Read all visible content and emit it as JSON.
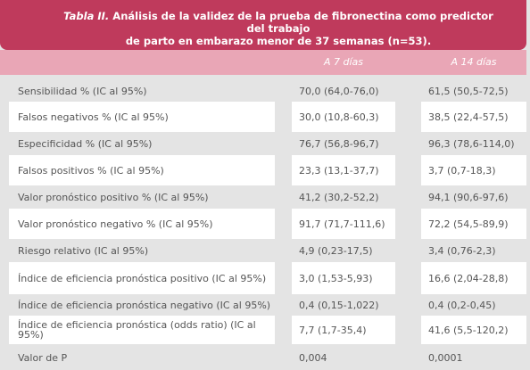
{
  "title": {
    "label": "Tabla II.",
    "line1": "Análisis de la validez de la prueba de fibronectina como predictor del trabajo",
    "line2": "de parto en embarazo menor de 37 semanas (n=53)."
  },
  "columns": [
    "A 7 días",
    "A 14 días"
  ],
  "rows": [
    {
      "label": "Sensibilidad % (IC al 95%)",
      "v7": "70,0 (64,0-76,0)",
      "v14": "61,5 (50,5-72,5)"
    },
    {
      "label": "Falsos negativos % (IC al 95%)",
      "v7": "30,0 (10,8-60,3)",
      "v14": "38,5 (22,4-57,5)"
    },
    {
      "label": "Especificidad % (IC al 95%)",
      "v7": "76,7 (56,8-96,7)",
      "v14": "96,3 (78,6-114,0)"
    },
    {
      "label": "Falsos positivos % (IC al 95%)",
      "v7": "23,3 (13,1-37,7)",
      "v14": "3,7 (0,7-18,3)"
    },
    {
      "label": "Valor pronóstico positivo % (IC al 95%)",
      "v7": "41,2 (30,2-52,2)",
      "v14": "94,1 (90,6-97,6)"
    },
    {
      "label": "Valor pronóstico negativo % (IC al 95%)",
      "v7": "91,7 (71,7-111,6)",
      "v14": "72,2 (54,5-89,9)"
    },
    {
      "label": "Riesgo relativo (IC al 95%)",
      "v7": "4,9 (0,23-17,5)",
      "v14": "3,4 (0,76-2,3)"
    },
    {
      "label": "Índice de eficiencia pronóstica positivo (IC al 95%)",
      "v7": "3,0 (1,53-5,93)",
      "v14": "16,6 (2,04-28,8)"
    },
    {
      "label": "Índice de eficiencia pronóstica negativo (IC al 95%)",
      "v7": "0,4 (0,15-1,022)",
      "v14": "0,4 (0,2-0,45)"
    },
    {
      "label": "Índice de eficiencia pronóstica (odds ratio) (IC al 95%)",
      "v7": "7,7 (1,7-35,4)",
      "v14": "41,6 (5,5-120,2)"
    },
    {
      "label": "Valor de P",
      "v7": "0,004",
      "v14": "0,0001"
    }
  ],
  "colors": {
    "title_bg": "#bf3a5c",
    "header_bg": "#e9a6b6",
    "shade_bg": "#e4e4e4",
    "text": "#555555"
  }
}
